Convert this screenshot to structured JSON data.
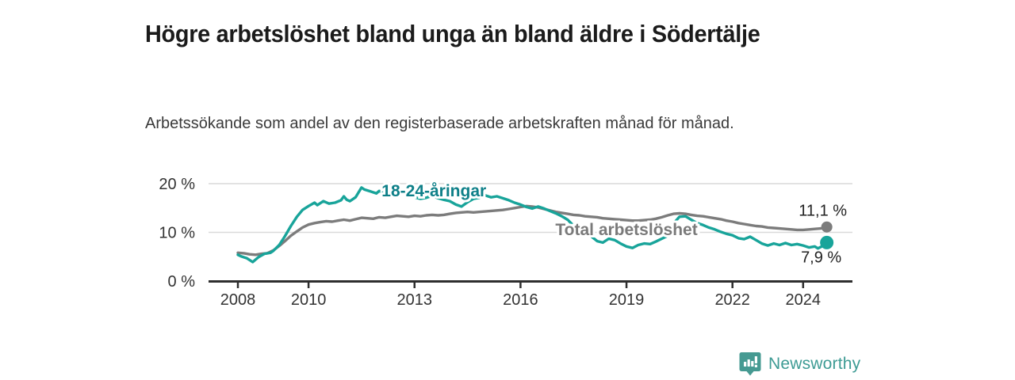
{
  "header": {
    "title": "Högre arbetslöshet bland unga än bland äldre i Södertälje",
    "subtitle": "Arbetssökande som andel av den registerbaserade arbetskraften månad för månad."
  },
  "footer": {
    "brand": "Newsworthy"
  },
  "colors": {
    "accent_teal_line": "#18a49a",
    "teal_label": "#0f8089",
    "gray_line": "#7c7c7c",
    "gray_label": "#7a7a7a",
    "axis_line": "#2e2e2e",
    "tick_text": "#333333",
    "grid_line": "#d9d9d9",
    "value_text": "#222222",
    "logo_teal": "#469a92"
  },
  "chart_data": {
    "type": "line",
    "title": "Högre arbetslöshet bland unga än bland äldre i Södertälje",
    "xlabel": "",
    "ylabel": "%",
    "xlim": [
      2007.2,
      2025.4
    ],
    "ylim": [
      0,
      21.5
    ],
    "grid": "horizontal",
    "legend_position": "inline-labels",
    "x_ticks": {
      "years": [
        2008,
        2010,
        2013,
        2016,
        2019,
        2022,
        2024
      ],
      "labels": [
        "2008",
        "2010",
        "2013",
        "2016",
        "2019",
        "2022",
        "2024"
      ]
    },
    "y_ticks": {
      "values": [
        0,
        10,
        20
      ],
      "labels": [
        "0 %",
        "10 %",
        "20 %"
      ]
    },
    "series": [
      {
        "name": "Total arbetslöshet",
        "color": "#7c7c7c",
        "label_color": "#7a7a7a",
        "label_anchor": {
          "x": 2019.0,
          "y": 10.55
        },
        "end_value": 11.1,
        "end_label": "11,1 %",
        "points": [
          [
            2008.0,
            5.8
          ],
          [
            2008.17,
            5.7
          ],
          [
            2008.33,
            5.5
          ],
          [
            2008.5,
            5.4
          ],
          [
            2008.67,
            5.6
          ],
          [
            2008.83,
            5.7
          ],
          [
            2009.0,
            6.3
          ],
          [
            2009.17,
            7.2
          ],
          [
            2009.33,
            8.2
          ],
          [
            2009.5,
            9.3
          ],
          [
            2009.67,
            10.2
          ],
          [
            2009.83,
            11.0
          ],
          [
            2010.0,
            11.6
          ],
          [
            2010.17,
            11.9
          ],
          [
            2010.33,
            12.1
          ],
          [
            2010.5,
            12.3
          ],
          [
            2010.67,
            12.2
          ],
          [
            2010.83,
            12.4
          ],
          [
            2011.0,
            12.6
          ],
          [
            2011.17,
            12.4
          ],
          [
            2011.33,
            12.7
          ],
          [
            2011.5,
            13.0
          ],
          [
            2011.67,
            12.9
          ],
          [
            2011.83,
            12.8
          ],
          [
            2012.0,
            13.1
          ],
          [
            2012.17,
            13.0
          ],
          [
            2012.33,
            13.2
          ],
          [
            2012.5,
            13.4
          ],
          [
            2012.67,
            13.3
          ],
          [
            2012.83,
            13.2
          ],
          [
            2013.0,
            13.4
          ],
          [
            2013.17,
            13.3
          ],
          [
            2013.33,
            13.5
          ],
          [
            2013.5,
            13.6
          ],
          [
            2013.67,
            13.5
          ],
          [
            2013.83,
            13.6
          ],
          [
            2014.0,
            13.8
          ],
          [
            2014.17,
            14.0
          ],
          [
            2014.33,
            14.1
          ],
          [
            2014.5,
            14.2
          ],
          [
            2014.67,
            14.1
          ],
          [
            2014.83,
            14.2
          ],
          [
            2015.0,
            14.3
          ],
          [
            2015.17,
            14.4
          ],
          [
            2015.33,
            14.5
          ],
          [
            2015.5,
            14.6
          ],
          [
            2015.67,
            14.8
          ],
          [
            2015.83,
            15.0
          ],
          [
            2016.0,
            15.2
          ],
          [
            2016.17,
            15.4
          ],
          [
            2016.33,
            15.3
          ],
          [
            2016.5,
            15.1
          ],
          [
            2016.67,
            14.8
          ],
          [
            2016.83,
            14.5
          ],
          [
            2017.0,
            14.2
          ],
          [
            2017.17,
            14.0
          ],
          [
            2017.33,
            13.8
          ],
          [
            2017.5,
            13.6
          ],
          [
            2017.67,
            13.5
          ],
          [
            2017.83,
            13.3
          ],
          [
            2018.0,
            13.2
          ],
          [
            2018.17,
            13.1
          ],
          [
            2018.33,
            12.9
          ],
          [
            2018.5,
            12.8
          ],
          [
            2018.67,
            12.7
          ],
          [
            2018.83,
            12.6
          ],
          [
            2019.0,
            12.5
          ],
          [
            2019.17,
            12.4
          ],
          [
            2019.33,
            12.4
          ],
          [
            2019.5,
            12.5
          ],
          [
            2019.67,
            12.6
          ],
          [
            2019.83,
            12.8
          ],
          [
            2020.0,
            13.1
          ],
          [
            2020.17,
            13.5
          ],
          [
            2020.33,
            13.8
          ],
          [
            2020.5,
            13.9
          ],
          [
            2020.67,
            13.8
          ],
          [
            2020.83,
            13.6
          ],
          [
            2021.0,
            13.4
          ],
          [
            2021.17,
            13.3
          ],
          [
            2021.33,
            13.1
          ],
          [
            2021.5,
            12.9
          ],
          [
            2021.67,
            12.7
          ],
          [
            2021.83,
            12.4
          ],
          [
            2022.0,
            12.2
          ],
          [
            2022.17,
            11.9
          ],
          [
            2022.33,
            11.7
          ],
          [
            2022.5,
            11.5
          ],
          [
            2022.67,
            11.3
          ],
          [
            2022.83,
            11.2
          ],
          [
            2023.0,
            11.0
          ],
          [
            2023.17,
            10.9
          ],
          [
            2023.33,
            10.8
          ],
          [
            2023.5,
            10.7
          ],
          [
            2023.67,
            10.6
          ],
          [
            2023.83,
            10.5
          ],
          [
            2024.0,
            10.5
          ],
          [
            2024.17,
            10.6
          ],
          [
            2024.33,
            10.7
          ],
          [
            2024.5,
            10.8
          ],
          [
            2024.67,
            11.1
          ]
        ]
      },
      {
        "name": "18-24-åringar",
        "color": "#18a49a",
        "label_color": "#0f8089",
        "label_anchor": {
          "x": 2013.55,
          "y": 18.55
        },
        "end_value": 7.9,
        "end_label": "7,9 %",
        "points": [
          [
            2008.0,
            5.4
          ],
          [
            2008.08,
            5.1
          ],
          [
            2008.25,
            4.7
          ],
          [
            2008.42,
            3.9
          ],
          [
            2008.58,
            4.9
          ],
          [
            2008.75,
            5.6
          ],
          [
            2008.92,
            5.8
          ],
          [
            2009.0,
            6.2
          ],
          [
            2009.17,
            7.4
          ],
          [
            2009.33,
            9.2
          ],
          [
            2009.5,
            11.3
          ],
          [
            2009.67,
            13.2
          ],
          [
            2009.83,
            14.6
          ],
          [
            2010.0,
            15.4
          ],
          [
            2010.17,
            16.1
          ],
          [
            2010.25,
            15.6
          ],
          [
            2010.42,
            16.4
          ],
          [
            2010.58,
            15.9
          ],
          [
            2010.75,
            16.1
          ],
          [
            2010.92,
            16.6
          ],
          [
            2011.0,
            17.4
          ],
          [
            2011.08,
            16.7
          ],
          [
            2011.17,
            16.4
          ],
          [
            2011.33,
            17.2
          ],
          [
            2011.5,
            19.2
          ],
          [
            2011.58,
            18.8
          ],
          [
            2011.75,
            18.4
          ],
          [
            2011.92,
            18.0
          ],
          [
            2012.0,
            18.5
          ],
          [
            2012.17,
            17.9
          ],
          [
            2012.33,
            18.3
          ],
          [
            2012.5,
            18.9
          ],
          [
            2012.67,
            18.4
          ],
          [
            2012.83,
            17.8
          ],
          [
            2013.0,
            17.2
          ],
          [
            2013.17,
            16.9
          ],
          [
            2013.33,
            17.1
          ],
          [
            2013.5,
            17.5
          ],
          [
            2013.67,
            17.0
          ],
          [
            2013.83,
            16.7
          ],
          [
            2014.0,
            16.4
          ],
          [
            2014.17,
            15.7
          ],
          [
            2014.33,
            15.3
          ],
          [
            2014.5,
            16.2
          ],
          [
            2014.67,
            16.9
          ],
          [
            2014.83,
            17.1
          ],
          [
            2015.0,
            17.6
          ],
          [
            2015.17,
            17.2
          ],
          [
            2015.33,
            17.4
          ],
          [
            2015.5,
            17.0
          ],
          [
            2015.67,
            16.6
          ],
          [
            2015.83,
            16.1
          ],
          [
            2016.0,
            15.7
          ],
          [
            2016.17,
            15.2
          ],
          [
            2016.33,
            14.9
          ],
          [
            2016.5,
            15.3
          ],
          [
            2016.67,
            14.9
          ],
          [
            2016.83,
            14.4
          ],
          [
            2017.0,
            13.9
          ],
          [
            2017.17,
            13.3
          ],
          [
            2017.33,
            12.6
          ],
          [
            2017.5,
            11.4
          ],
          [
            2017.67,
            10.4
          ],
          [
            2017.83,
            9.7
          ],
          [
            2018.0,
            9.2
          ],
          [
            2018.17,
            8.2
          ],
          [
            2018.33,
            7.9
          ],
          [
            2018.5,
            8.7
          ],
          [
            2018.67,
            8.4
          ],
          [
            2018.83,
            7.7
          ],
          [
            2019.0,
            7.1
          ],
          [
            2019.17,
            6.8
          ],
          [
            2019.33,
            7.4
          ],
          [
            2019.5,
            7.7
          ],
          [
            2019.67,
            7.6
          ],
          [
            2019.83,
            8.1
          ],
          [
            2020.0,
            8.7
          ],
          [
            2020.17,
            9.3
          ],
          [
            2020.33,
            11.8
          ],
          [
            2020.5,
            13.2
          ],
          [
            2020.67,
            13.3
          ],
          [
            2020.83,
            12.6
          ],
          [
            2021.0,
            11.9
          ],
          [
            2021.17,
            11.5
          ],
          [
            2021.33,
            11.0
          ],
          [
            2021.5,
            10.6
          ],
          [
            2021.67,
            10.1
          ],
          [
            2021.83,
            9.7
          ],
          [
            2022.0,
            9.4
          ],
          [
            2022.17,
            8.8
          ],
          [
            2022.33,
            8.6
          ],
          [
            2022.5,
            9.1
          ],
          [
            2022.67,
            8.4
          ],
          [
            2022.83,
            7.7
          ],
          [
            2023.0,
            7.3
          ],
          [
            2023.17,
            7.7
          ],
          [
            2023.33,
            7.4
          ],
          [
            2023.5,
            7.8
          ],
          [
            2023.67,
            7.4
          ],
          [
            2023.83,
            7.6
          ],
          [
            2024.0,
            7.3
          ],
          [
            2024.17,
            6.9
          ],
          [
            2024.33,
            7.1
          ],
          [
            2024.42,
            6.7
          ],
          [
            2024.58,
            7.3
          ],
          [
            2024.67,
            7.9
          ]
        ]
      }
    ]
  }
}
